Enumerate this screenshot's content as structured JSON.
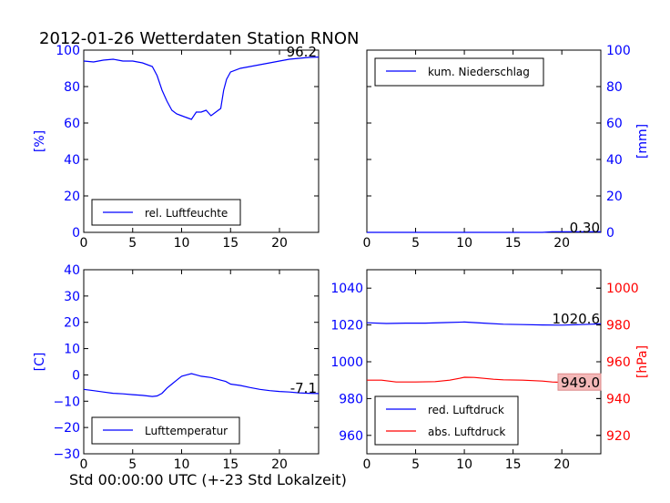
{
  "figure": {
    "title": "2012-01-26 Wetterdaten Station RNON",
    "xlabel": "Std 00:00:00 UTC (+-23 Std Lokalzeit)"
  },
  "colors": {
    "blue": "#0000ff",
    "red": "#ff0000",
    "black": "#000000",
    "badge_red": "#f4b8b8"
  },
  "chart_data": [
    {
      "id": "humidity",
      "type": "line",
      "title": "",
      "xlabel": "",
      "ylabel": "[%]",
      "xlim": [
        0,
        24
      ],
      "ylim": [
        0,
        100
      ],
      "x_ticks": [
        "0",
        "5",
        "10",
        "15",
        "20"
      ],
      "y_ticks": [
        "0",
        "20",
        "40",
        "60",
        "80",
        "100"
      ],
      "grid": false,
      "legend_position": "lower-left",
      "current_value_label": "96.2",
      "series": [
        {
          "name": "rel. Luftfeuchte",
          "color": "#0000ff",
          "x": [
            0,
            1,
            2,
            3,
            4,
            5,
            6,
            7,
            7.5,
            8,
            8.5,
            9,
            9.5,
            10,
            10.5,
            11,
            11.5,
            12,
            12.5,
            13,
            13.5,
            14,
            14.3,
            14.6,
            15,
            16,
            17,
            18,
            19,
            20,
            21,
            22,
            23,
            24
          ],
          "y": [
            94,
            93.5,
            94.5,
            95,
            94,
            94,
            93,
            91,
            86,
            78,
            72,
            67,
            65,
            64,
            63,
            62,
            66,
            66,
            67,
            64,
            66,
            68,
            78,
            84,
            88,
            90,
            91,
            92,
            93,
            94,
            95,
            95.5,
            96,
            96.2
          ]
        }
      ]
    },
    {
      "id": "precipitation",
      "type": "line",
      "title": "",
      "xlabel": "",
      "ylabel": "[mm]",
      "xlim": [
        0,
        24
      ],
      "ylim": [
        0,
        100
      ],
      "x_ticks": [
        "0",
        "5",
        "10",
        "15",
        "20"
      ],
      "y_ticks": [
        "0",
        "20",
        "40",
        "60",
        "80",
        "100"
      ],
      "grid": false,
      "legend_position": "top-left",
      "current_value_label": "0.30",
      "series": [
        {
          "name": "kum. Niederschlag",
          "color": "#0000ff",
          "x": [
            0,
            6,
            12,
            18,
            19,
            24
          ],
          "y": [
            0,
            0,
            0,
            0,
            0.3,
            0.3
          ]
        }
      ]
    },
    {
      "id": "temperature",
      "type": "line",
      "title": "",
      "xlabel": "",
      "ylabel": "[C]",
      "xlim": [
        0,
        24
      ],
      "ylim": [
        -30,
        40
      ],
      "x_ticks": [
        "0",
        "5",
        "10",
        "15",
        "20"
      ],
      "y_ticks": [
        "−30",
        "−20",
        "−10",
        "0",
        "10",
        "20",
        "30",
        "40"
      ],
      "grid": false,
      "legend_position": "lower-left",
      "current_value_label": "-7.1",
      "series": [
        {
          "name": "Lufttemperatur",
          "color": "#0000ff",
          "x": [
            0,
            1,
            2,
            3,
            4,
            5,
            6,
            7,
            7.5,
            8,
            8.5,
            9,
            9.5,
            10,
            10.5,
            11,
            11.5,
            12,
            13,
            14,
            14.5,
            15,
            16,
            17,
            18,
            19,
            20,
            21,
            22,
            23,
            24
          ],
          "y": [
            -5.5,
            -6,
            -6.5,
            -7,
            -7.2,
            -7.5,
            -7.8,
            -8.2,
            -8,
            -7,
            -5,
            -3.5,
            -2,
            -0.5,
            0,
            0.5,
            0,
            -0.5,
            -1,
            -2,
            -2.5,
            -3.5,
            -4,
            -4.8,
            -5.5,
            -6,
            -6.3,
            -6.5,
            -6.8,
            -7,
            -7.1
          ]
        }
      ]
    },
    {
      "id": "pressure",
      "type": "line",
      "title": "",
      "xlabel": "",
      "ylabel": "[hPa]",
      "xlim": [
        0,
        24
      ],
      "ylim": [
        950,
        1050
      ],
      "ylim_right": [
        910,
        1010
      ],
      "x_ticks": [
        "0",
        "5",
        "10",
        "15",
        "20"
      ],
      "y_ticks": [
        "960",
        "980",
        "1000",
        "1020",
        "1040"
      ],
      "y_ticks_right": [
        "920",
        "940",
        "960",
        "980",
        "1000"
      ],
      "grid": false,
      "legend_position": "lower-left",
      "current_value_label": "1020.6",
      "current_value_label_right": "949.0",
      "series": [
        {
          "name": "red. Luftdruck",
          "color": "#0000ff",
          "axis": "left",
          "x": [
            0,
            2,
            4,
            6,
            8,
            10,
            12,
            14,
            16,
            18,
            20,
            22,
            24
          ],
          "y": [
            1021.2,
            1020.8,
            1021,
            1021,
            1021.3,
            1021.6,
            1021,
            1020.4,
            1020.2,
            1020,
            1019.9,
            1020.2,
            1020.6
          ]
        },
        {
          "name": "abs. Luftdruck",
          "color": "#ff0000",
          "axis": "right",
          "x": [
            0,
            1.5,
            3,
            5,
            7,
            8.5,
            9.5,
            10,
            11,
            12,
            13,
            14,
            16,
            18,
            19,
            20,
            22,
            24
          ],
          "y": [
            950,
            950,
            949,
            949,
            949.2,
            950,
            951,
            951.6,
            951.5,
            951,
            950.5,
            950.2,
            950,
            949.5,
            949,
            948.8,
            949,
            949
          ]
        }
      ]
    }
  ]
}
